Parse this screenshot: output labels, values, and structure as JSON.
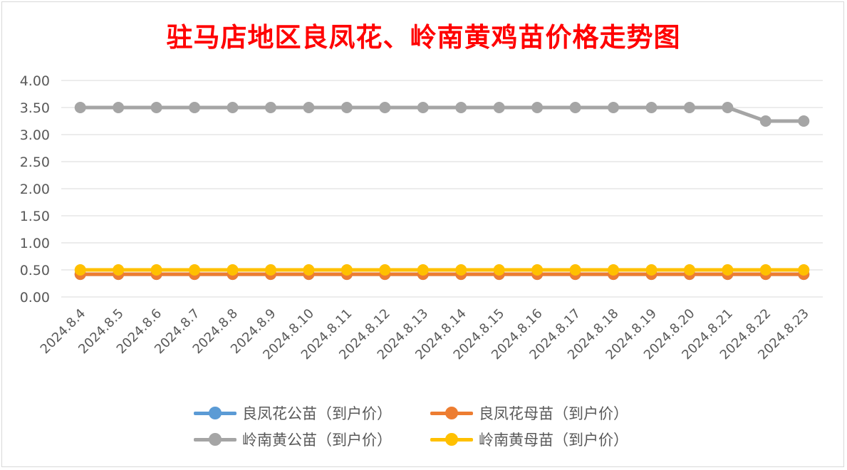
{
  "chart_data": {
    "type": "line",
    "title": "驻马店地区良凤花、岭南黄鸡苗价格走势图",
    "categories": [
      "2024.8.4",
      "2024.8.5",
      "2024.8.6",
      "2024.8.7",
      "2024.8.8",
      "2024.8.9",
      "2024.8.10",
      "2024.8.11",
      "2024.8.12",
      "2024.8.13",
      "2024.8.14",
      "2024.8.15",
      "2024.8.16",
      "2024.8.17",
      "2024.8.18",
      "2024.8.19",
      "2024.8.20",
      "2024.8.21",
      "2024.8.22",
      "2024.8.23"
    ],
    "series": [
      {
        "name": "良凤花公苗（到户价）",
        "color": "#5b9bd5",
        "values": [
          0.42,
          0.42,
          0.42,
          0.42,
          0.42,
          0.42,
          0.42,
          0.42,
          0.42,
          0.42,
          0.42,
          0.42,
          0.42,
          0.42,
          0.42,
          0.42,
          0.42,
          0.42,
          0.42,
          0.42
        ]
      },
      {
        "name": "良凤花母苗（到户价）",
        "color": "#ed7d31",
        "values": [
          0.42,
          0.42,
          0.42,
          0.42,
          0.42,
          0.42,
          0.42,
          0.42,
          0.42,
          0.42,
          0.42,
          0.42,
          0.42,
          0.42,
          0.42,
          0.42,
          0.42,
          0.42,
          0.42,
          0.42
        ]
      },
      {
        "name": "岭南黄公苗（到户价）",
        "color": "#a5a5a5",
        "values": [
          3.5,
          3.5,
          3.5,
          3.5,
          3.5,
          3.5,
          3.5,
          3.5,
          3.5,
          3.5,
          3.5,
          3.5,
          3.5,
          3.5,
          3.5,
          3.5,
          3.5,
          3.5,
          3.25,
          3.25
        ]
      },
      {
        "name": "岭南黄母苗（到户价）",
        "color": "#ffc000",
        "values": [
          0.5,
          0.5,
          0.5,
          0.5,
          0.5,
          0.5,
          0.5,
          0.5,
          0.5,
          0.5,
          0.5,
          0.5,
          0.5,
          0.5,
          0.5,
          0.5,
          0.5,
          0.5,
          0.5,
          0.5
        ]
      }
    ],
    "yticks": [
      "0.00",
      "0.50",
      "1.00",
      "1.50",
      "2.00",
      "2.50",
      "3.00",
      "3.50",
      "4.00"
    ],
    "ylim": [
      0,
      4
    ],
    "grid": true,
    "legend_position": "bottom",
    "title_color": "#ff0000"
  }
}
